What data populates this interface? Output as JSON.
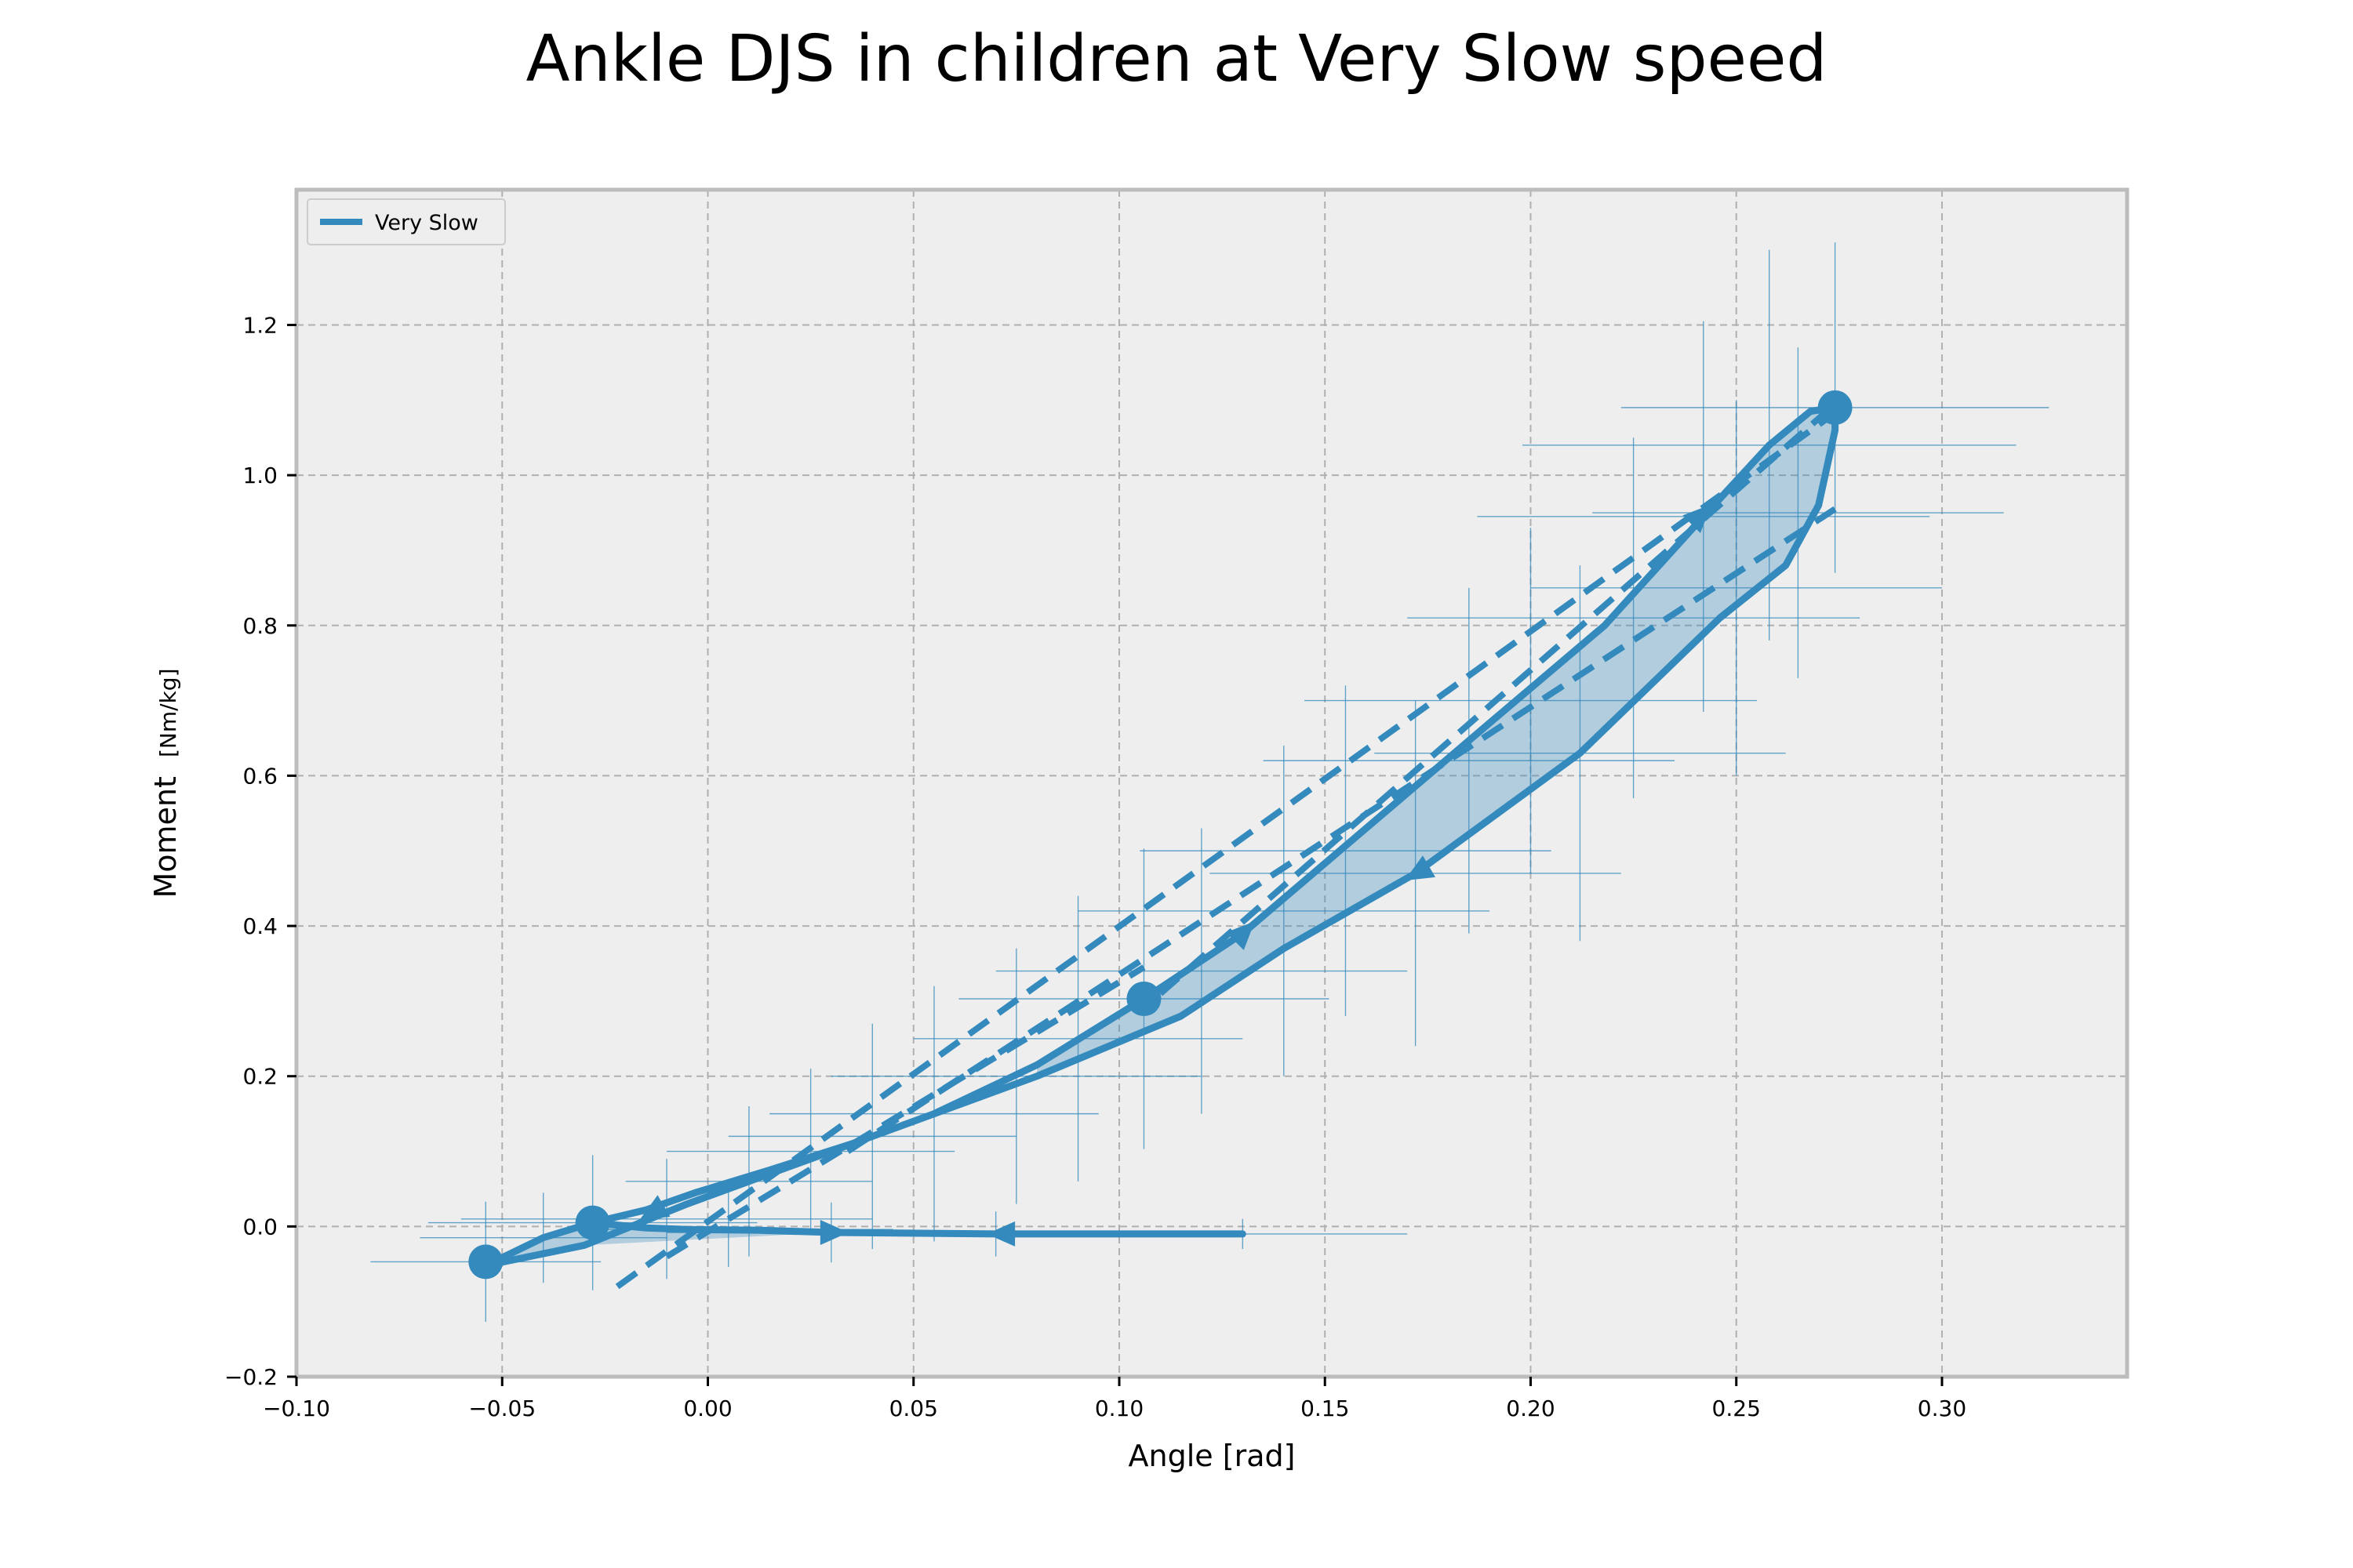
{
  "title": "Ankle DJS in children at Very Slow speed",
  "colors": {
    "series": "#348ABD",
    "background": "#EEEEEE",
    "grid": "#B0B0B0",
    "frame": "#BCBCBC",
    "fill": "#348ABD"
  },
  "chart_data": {
    "type": "line",
    "title": "Ankle DJS in children at Very Slow speed",
    "xlabel": "Angle [rad]",
    "ylabel": "Moment",
    "ylabel_unit": "[Nm/kg]",
    "xlim": [
      -0.1,
      0.345
    ],
    "ylim": [
      -0.2,
      1.38
    ],
    "xticks": [
      -0.1,
      -0.05,
      0.0,
      0.05,
      0.1,
      0.15,
      0.2,
      0.25,
      0.3
    ],
    "xtick_labels": [
      "−0.10",
      "−0.05",
      "0.00",
      "0.05",
      "0.10",
      "0.15",
      "0.20",
      "0.25",
      "0.30"
    ],
    "yticks": [
      -0.2,
      0.0,
      0.2,
      0.4,
      0.6,
      0.8,
      1.0,
      1.2
    ],
    "ytick_labels": [
      "−0.2",
      "0.0",
      "0.2",
      "0.4",
      "0.6",
      "0.8",
      "1.0",
      "1.2"
    ],
    "grid": true,
    "legend_position": "top-left",
    "series": [
      {
        "name": "Very Slow",
        "loop": [
          [
            0.13,
            -0.01
          ],
          [
            0.07,
            -0.01
          ],
          [
            0.03,
            -0.008
          ],
          [
            0.012,
            -0.005
          ],
          [
            -0.005,
            -0.004
          ],
          [
            -0.015,
            -0.002
          ],
          [
            -0.028,
            0.005
          ],
          [
            -0.015,
            0.022
          ],
          [
            -0.003,
            0.045
          ],
          [
            0.015,
            0.075
          ],
          [
            0.035,
            0.11
          ],
          [
            0.055,
            0.15
          ],
          [
            0.08,
            0.215
          ],
          [
            0.106,
            0.303
          ],
          [
            0.13,
            0.39
          ],
          [
            0.16,
            0.53
          ],
          [
            0.19,
            0.67
          ],
          [
            0.218,
            0.8
          ],
          [
            0.242,
            0.945
          ],
          [
            0.258,
            1.04
          ],
          [
            0.268,
            1.085
          ],
          [
            0.274,
            1.09
          ],
          [
            0.274,
            1.06
          ],
          [
            0.27,
            0.96
          ],
          [
            0.262,
            0.88
          ],
          [
            0.246,
            0.81
          ],
          [
            0.212,
            0.63
          ],
          [
            0.172,
            0.47
          ],
          [
            0.14,
            0.37
          ],
          [
            0.115,
            0.28
          ],
          [
            0.08,
            0.2
          ],
          [
            0.055,
            0.15
          ],
          [
            0.02,
            0.08
          ],
          [
            -0.005,
            0.03
          ],
          [
            -0.03,
            -0.025
          ],
          [
            -0.054,
            -0.052
          ],
          [
            -0.04,
            -0.015
          ],
          [
            -0.028,
            0.005
          ]
        ],
        "fill_region": [
          [
            -0.054,
            -0.05
          ],
          [
            -0.028,
            0.005
          ],
          [
            0.012,
            -0.005
          ],
          [
            0.03,
            -0.008
          ],
          [
            -0.03,
            -0.025
          ],
          [
            -0.054,
            -0.052
          ]
        ],
        "fill_region_2": [
          [
            0.08,
            0.215
          ],
          [
            0.106,
            0.303
          ],
          [
            0.13,
            0.39
          ],
          [
            0.16,
            0.53
          ],
          [
            0.19,
            0.67
          ],
          [
            0.218,
            0.8
          ],
          [
            0.242,
            0.945
          ],
          [
            0.258,
            1.04
          ],
          [
            0.268,
            1.085
          ],
          [
            0.274,
            1.09
          ],
          [
            0.274,
            1.06
          ],
          [
            0.27,
            0.96
          ],
          [
            0.262,
            0.88
          ],
          [
            0.246,
            0.81
          ],
          [
            0.212,
            0.63
          ],
          [
            0.172,
            0.47
          ],
          [
            0.14,
            0.37
          ],
          [
            0.115,
            0.28
          ],
          [
            0.08,
            0.2
          ]
        ],
        "key_points": [
          {
            "x": -0.054,
            "y": -0.047
          },
          {
            "x": -0.028,
            "y": 0.005
          },
          {
            "x": 0.106,
            "y": 0.303
          },
          {
            "x": 0.274,
            "y": 1.09
          }
        ],
        "arrows": [
          {
            "x": 0.03,
            "y": -0.008,
            "dir": "right"
          },
          {
            "x": 0.072,
            "y": -0.01,
            "dir": "left"
          },
          {
            "x": -0.013,
            "y": 0.02,
            "dir": "down-left"
          },
          {
            "x": 0.13,
            "y": 0.39,
            "dir": "up-right"
          },
          {
            "x": 0.241,
            "y": 0.945,
            "dir": "up-right"
          },
          {
            "x": 0.173,
            "y": 0.472,
            "dir": "down-left"
          }
        ],
        "dashed_lines": [
          {
            "x": [
              -0.022,
              0.272
            ],
            "y": [
              -0.08,
              1.075
            ]
          },
          {
            "x": 0.034,
            "y": 0.1,
            "x2": 0.274,
            "y2": 0.955
          },
          {
            "x": [
              0.11,
              0.272
            ],
            "y": [
              0.31,
              1.085
            ]
          },
          {
            "x": [
              -0.01,
              0.106
            ],
            "y": [
              -0.04,
              0.345
            ]
          }
        ],
        "error_bars": [
          {
            "x": -0.054,
            "y": -0.047,
            "xerr": 0.028,
            "yerr": 0.08
          },
          {
            "x": -0.04,
            "y": -0.015,
            "xerr": 0.03,
            "yerr": 0.06
          },
          {
            "x": -0.028,
            "y": 0.005,
            "xerr": 0.04,
            "yerr": 0.09
          },
          {
            "x": -0.01,
            "y": 0.01,
            "xerr": 0.05,
            "yerr": 0.08
          },
          {
            "x": 0.005,
            "y": -0.004,
            "xerr": 0.04,
            "yerr": 0.05
          },
          {
            "x": 0.03,
            "y": -0.008,
            "xerr": 0.04,
            "yerr": 0.04
          },
          {
            "x": 0.07,
            "y": -0.01,
            "xerr": 0.05,
            "yerr": 0.03
          },
          {
            "x": 0.13,
            "y": -0.01,
            "xerr": 0.04,
            "yerr": 0.02
          },
          {
            "x": 0.01,
            "y": 0.06,
            "xerr": 0.03,
            "yerr": 0.1
          },
          {
            "x": 0.025,
            "y": 0.1,
            "xerr": 0.035,
            "yerr": 0.11
          },
          {
            "x": 0.04,
            "y": 0.12,
            "xerr": 0.035,
            "yerr": 0.15
          },
          {
            "x": 0.055,
            "y": 0.15,
            "xerr": 0.04,
            "yerr": 0.17
          },
          {
            "x": 0.075,
            "y": 0.2,
            "xerr": 0.045,
            "yerr": 0.17
          },
          {
            "x": 0.09,
            "y": 0.25,
            "xerr": 0.04,
            "yerr": 0.19
          },
          {
            "x": 0.106,
            "y": 0.303,
            "xerr": 0.045,
            "yerr": 0.2
          },
          {
            "x": 0.12,
            "y": 0.34,
            "xerr": 0.05,
            "yerr": 0.19
          },
          {
            "x": 0.14,
            "y": 0.42,
            "xerr": 0.05,
            "yerr": 0.22
          },
          {
            "x": 0.155,
            "y": 0.5,
            "xerr": 0.05,
            "yerr": 0.22
          },
          {
            "x": 0.172,
            "y": 0.47,
            "xerr": 0.05,
            "yerr": 0.23
          },
          {
            "x": 0.185,
            "y": 0.62,
            "xerr": 0.05,
            "yerr": 0.23
          },
          {
            "x": 0.2,
            "y": 0.7,
            "xerr": 0.055,
            "yerr": 0.23
          },
          {
            "x": 0.212,
            "y": 0.63,
            "xerr": 0.05,
            "yerr": 0.25
          },
          {
            "x": 0.225,
            "y": 0.81,
            "xerr": 0.055,
            "yerr": 0.24
          },
          {
            "x": 0.242,
            "y": 0.945,
            "xerr": 0.055,
            "yerr": 0.26
          },
          {
            "x": 0.25,
            "y": 0.85,
            "xerr": 0.05,
            "yerr": 0.25
          },
          {
            "x": 0.258,
            "y": 1.04,
            "xerr": 0.06,
            "yerr": 0.26
          },
          {
            "x": 0.265,
            "y": 0.95,
            "xerr": 0.05,
            "yerr": 0.22
          },
          {
            "x": 0.274,
            "y": 1.09,
            "xerr": 0.052,
            "yerr": 0.22
          }
        ]
      }
    ]
  }
}
